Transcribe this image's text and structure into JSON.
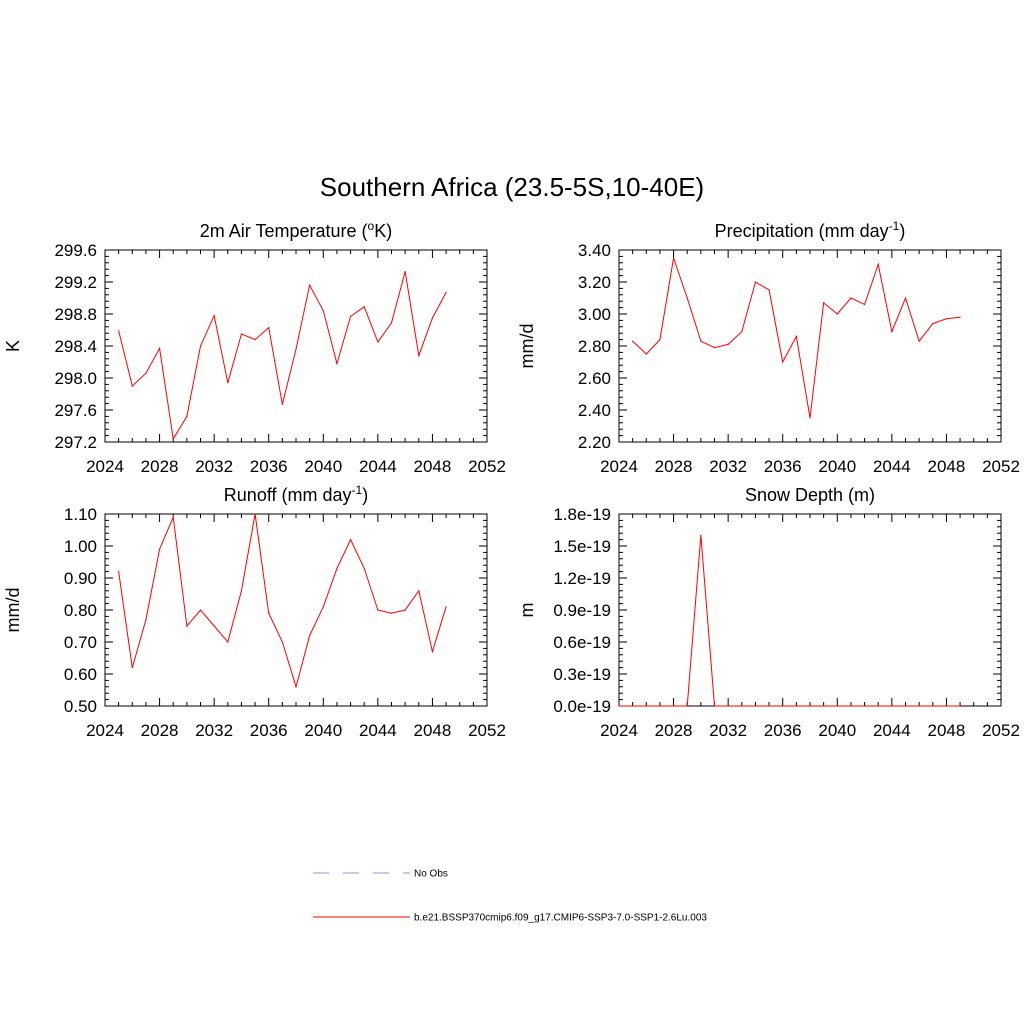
{
  "figure": {
    "title": "Southern Africa (23.5-5S,10-40E)"
  },
  "colors": {
    "series": "#ff0000",
    "obs": "#a8a8e0",
    "axis": "#000000"
  },
  "legend": {
    "obs_label": "No Obs",
    "model_label": "b.e21.BSSP370cmip6.f09_g17.CMIP6-SSP3-7.0-SSP1-2.6Lu.003"
  },
  "chart_data": [
    {
      "type": "line",
      "title": "2m Air Temperature (",
      "title_sup": "o",
      "title_tail": "K)",
      "ylabel": "K",
      "xlim": [
        2024,
        2052
      ],
      "ylim": [
        297.2,
        299.6
      ],
      "x_ticks": [
        "2024",
        "2028",
        "2032",
        "2036",
        "2040",
        "2044",
        "2048",
        "2052"
      ],
      "y_ticks": [
        "297.2",
        "297.6",
        "298.0",
        "298.4",
        "298.8",
        "299.2",
        "299.6"
      ],
      "x": [
        2025,
        2026,
        2027,
        2028,
        2029,
        2030,
        2031,
        2032,
        2033,
        2034,
        2035,
        2036,
        2037,
        2038,
        2039,
        2040,
        2041,
        2042,
        2043,
        2044,
        2045,
        2046,
        2047,
        2048,
        2049
      ],
      "series": [
        {
          "values": [
            298.59,
            297.9,
            298.06,
            298.37,
            297.24,
            297.52,
            298.4,
            298.78,
            297.94,
            298.55,
            298.48,
            298.63,
            297.67,
            298.36,
            299.16,
            298.84,
            298.18,
            298.77,
            298.89,
            298.45,
            298.69,
            299.33,
            298.28,
            298.75,
            299.07
          ]
        }
      ]
    },
    {
      "type": "line",
      "title": "Precipitation (mm day",
      "title_sup": "-1",
      "title_tail": ")",
      "ylabel": "mm/d",
      "xlim": [
        2024,
        2052
      ],
      "ylim": [
        2.2,
        3.4
      ],
      "x_ticks": [
        "2024",
        "2028",
        "2032",
        "2036",
        "2040",
        "2044",
        "2048",
        "2052"
      ],
      "y_ticks": [
        "2.20",
        "2.40",
        "2.60",
        "2.80",
        "3.00",
        "3.20",
        "3.40"
      ],
      "x": [
        2025,
        2026,
        2027,
        2028,
        2029,
        2030,
        2031,
        2032,
        2033,
        2034,
        2035,
        2036,
        2037,
        2038,
        2039,
        2040,
        2041,
        2042,
        2043,
        2044,
        2045,
        2046,
        2047,
        2048,
        2049
      ],
      "series": [
        {
          "values": [
            2.83,
            2.75,
            2.84,
            3.35,
            3.1,
            2.83,
            2.79,
            2.81,
            2.89,
            3.2,
            3.15,
            2.7,
            2.86,
            2.35,
            3.07,
            3.0,
            3.1,
            3.06,
            3.31,
            2.89,
            3.1,
            2.83,
            2.94,
            2.97,
            2.98
          ]
        }
      ]
    },
    {
      "type": "line",
      "title": "Runoff (mm day",
      "title_sup": "-1",
      "title_tail": ")",
      "ylabel": "mm/d",
      "xlim": [
        2024,
        2052
      ],
      "ylim": [
        0.5,
        1.1
      ],
      "x_ticks": [
        "2024",
        "2028",
        "2032",
        "2036",
        "2040",
        "2044",
        "2048",
        "2052"
      ],
      "y_ticks": [
        "0.50",
        "0.60",
        "0.70",
        "0.80",
        "0.90",
        "1.00",
        "1.10"
      ],
      "x": [
        2025,
        2026,
        2027,
        2028,
        2029,
        2030,
        2031,
        2032,
        2033,
        2034,
        2035,
        2036,
        2037,
        2038,
        2039,
        2040,
        2041,
        2042,
        2043,
        2044,
        2045,
        2046,
        2047,
        2048,
        2049
      ],
      "series": [
        {
          "values": [
            0.92,
            0.62,
            0.77,
            0.99,
            1.09,
            0.75,
            0.8,
            0.75,
            0.7,
            0.86,
            1.1,
            0.79,
            0.7,
            0.56,
            0.72,
            0.81,
            0.93,
            1.02,
            0.93,
            0.8,
            0.79,
            0.8,
            0.86,
            0.67,
            0.81
          ]
        }
      ]
    },
    {
      "type": "line",
      "title": "Snow Depth (m)",
      "title_sup": "",
      "title_tail": "",
      "ylabel": "m",
      "xlim": [
        2024,
        2052
      ],
      "ylim": [
        0,
        1.8e-19
      ],
      "x_ticks": [
        "2024",
        "2028",
        "2032",
        "2036",
        "2040",
        "2044",
        "2048",
        "2052"
      ],
      "y_ticks": [
        "0.0e-19",
        "0.3e-19",
        "0.6e-19",
        "0.9e-19",
        "1.2e-19",
        "1.5e-19",
        "1.8e-19"
      ],
      "x": [
        2024,
        2025,
        2026,
        2027,
        2028,
        2029,
        2030,
        2031,
        2032,
        2033,
        2034,
        2035,
        2036,
        2037,
        2038,
        2039,
        2040,
        2041,
        2042,
        2043,
        2044,
        2045,
        2046,
        2047,
        2048,
        2049
      ],
      "series": [
        {
          "values": [
            0,
            0,
            0,
            0,
            0,
            0,
            1.6e-19,
            0,
            0,
            0,
            0,
            0,
            0,
            0,
            0,
            0,
            0,
            0,
            0,
            0,
            0,
            0,
            0,
            0,
            0,
            0
          ]
        }
      ]
    }
  ]
}
